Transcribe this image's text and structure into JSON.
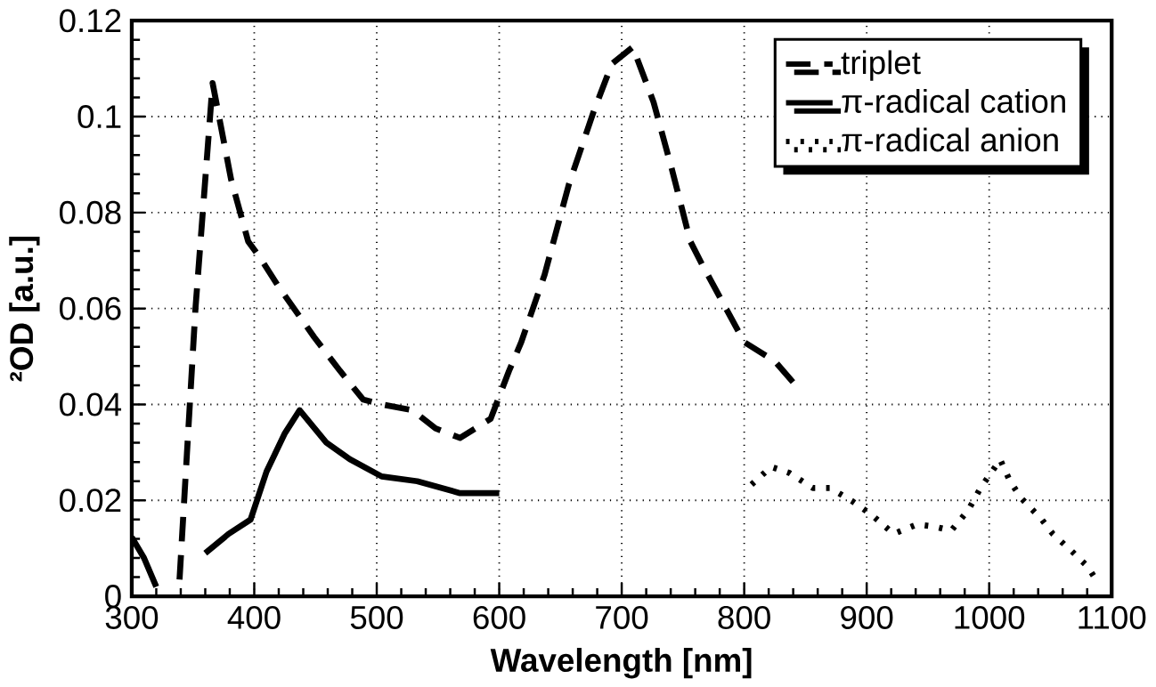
{
  "chart_data": {
    "type": "line",
    "xlabel": "Wavelength [nm]",
    "ylabel": "²OD [a.u.]",
    "xlim": [
      300,
      1100
    ],
    "ylim": [
      0,
      0.12
    ],
    "xticks": [
      300,
      400,
      500,
      600,
      700,
      800,
      900,
      1000,
      1100
    ],
    "yticks": [
      0,
      0.02,
      0.04,
      0.06,
      0.08,
      0.1,
      0.12
    ],
    "grid": true,
    "legend": "top right",
    "series": [
      {
        "name": "triplet",
        "color": "#000000",
        "line_style": "dashed",
        "x": [
          339,
          352,
          366,
          381,
          395,
          405,
          420,
          449,
          470,
          489,
          504,
          529,
          548,
          568,
          593,
          608,
          618,
          637,
          657,
          677,
          692,
          709,
          726,
          741,
          756,
          766,
          800,
          825,
          842
        ],
        "values": [
          0.0035,
          0.06,
          0.107,
          0.087,
          0.074,
          0.0705,
          0.0645,
          0.054,
          0.047,
          0.041,
          0.04,
          0.0388,
          0.035,
          0.033,
          0.037,
          0.047,
          0.053,
          0.067,
          0.086,
          0.101,
          0.111,
          0.1145,
          0.103,
          0.089,
          0.074,
          0.069,
          0.053,
          0.049,
          0.044
        ]
      },
      {
        "name": "π-radical cation",
        "color": "#000000",
        "line_style": "solid",
        "x": [
          300,
          310,
          320,
          null,
          360,
          379,
          397,
          410,
          425,
          437,
          459,
          478,
          504,
          533,
          568,
          600
        ],
        "values": [
          0.0123,
          0.008,
          0.002,
          null,
          0.009,
          0.013,
          0.016,
          0.026,
          0.034,
          0.0388,
          0.032,
          0.0286,
          0.025,
          0.024,
          0.0215,
          0.0215
        ]
      },
      {
        "name": "π-radical anion",
        "color": "#000000",
        "line_style": "dotted",
        "x": [
          806,
          822,
          837,
          856,
          870,
          889,
          904,
          922,
          941,
          956,
          969,
          983,
          993,
          1009,
          1017,
          1026,
          1043,
          1052,
          1067,
          1080,
          1089
        ],
        "values": [
          0.0233,
          0.027,
          0.0257,
          0.0226,
          0.0226,
          0.0197,
          0.017,
          0.013,
          0.015,
          0.0145,
          0.0137,
          0.018,
          0.0226,
          0.0285,
          0.024,
          0.0205,
          0.016,
          0.013,
          0.0095,
          0.0063,
          0.0028
        ]
      }
    ]
  }
}
